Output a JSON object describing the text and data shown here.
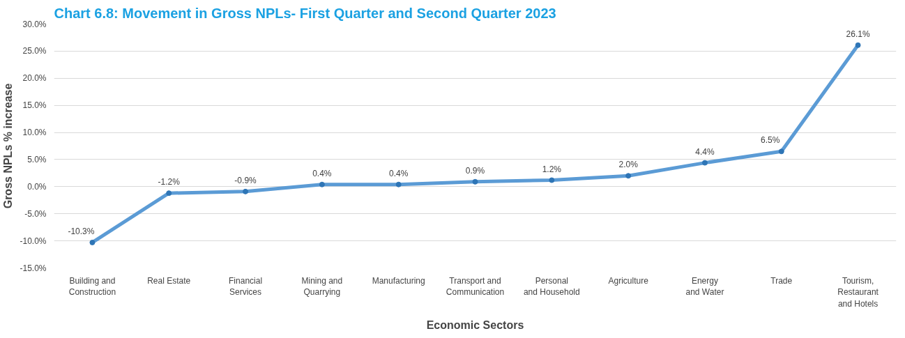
{
  "chart_data": {
    "type": "line",
    "title": "Chart 6.8: Movement in Gross NPLs- First Quarter and Second Quarter 2023",
    "xlabel": "Economic Sectors",
    "ylabel": "Gross NPLs % increase",
    "categories": [
      "Building and\nConstruction",
      "Real Estate",
      "Financial\nServices",
      "Mining and\nQuarrying",
      "Manufacturing",
      "Transport and\nCommunication",
      "Personal\nand Household",
      "Agriculture",
      "Energy\nand Water",
      "Trade",
      "Tourism,\nRestaurant\nand Hotels"
    ],
    "series": [
      {
        "color": "#5b9bd5",
        "values": [
          -10.3,
          -1.2,
          -0.9,
          0.4,
          0.4,
          0.9,
          1.2,
          2.0,
          4.4,
          6.5,
          26.1
        ]
      }
    ],
    "value_labels": [
      "-10.3%",
      "-1.2%",
      "-0.9%",
      "0.4%",
      "0.4%",
      "0.9%",
      "1.2%",
      "2.0%",
      "4.4%",
      "6.5%",
      "26.1%"
    ],
    "ylim": [
      -15,
      30
    ],
    "yticks": [
      {
        "value": -15,
        "label": "-15.0%"
      },
      {
        "value": -10,
        "label": "-10.0%"
      },
      {
        "value": -5,
        "label": "-5.0%"
      },
      {
        "value": 0,
        "label": "0.0%"
      },
      {
        "value": 5,
        "label": "5.0%"
      },
      {
        "value": 10,
        "label": "10.0%"
      },
      {
        "value": 15,
        "label": "15.0%"
      },
      {
        "value": 20,
        "label": "20.0%"
      },
      {
        "value": 25,
        "label": "25.0%"
      },
      {
        "value": 30,
        "label": "30.0%"
      }
    ],
    "grid": "y",
    "marker": "circle",
    "line_style": "solid"
  }
}
